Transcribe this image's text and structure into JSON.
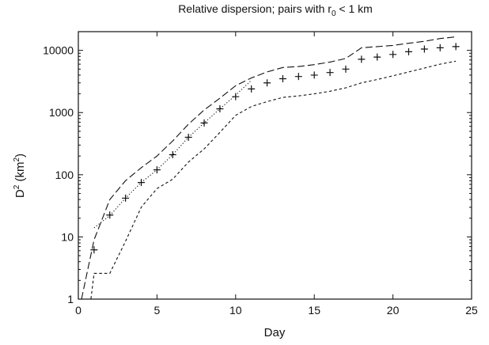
{
  "chart_data": {
    "type": "line",
    "title_main": "Relative dispersion; pairs with r",
    "title_sub": "0",
    "title_tail": " < 1 km",
    "xlabel": "Day",
    "ylabel_main": "D",
    "ylabel_sup1": "2",
    "ylabel_mid": " (km",
    "ylabel_sup2": "2",
    "ylabel_end": ")",
    "xlim": [
      0,
      25
    ],
    "ylim": [
      1,
      20000
    ],
    "y_scale": "log",
    "grid": false,
    "x_ticks": [
      0,
      5,
      10,
      15,
      20,
      25
    ],
    "x_tick_labels": [
      "0",
      "5",
      "10",
      "15",
      "20",
      "25"
    ],
    "y_ticks": [
      1,
      10,
      100,
      1000,
      10000
    ],
    "y_tick_labels": [
      "1",
      "10",
      "100",
      "1000",
      "10000"
    ],
    "series": [
      {
        "style": "markers-plus",
        "x": [
          1,
          2,
          3,
          4,
          5,
          6,
          7,
          8,
          9,
          10,
          11,
          12,
          13,
          14,
          15,
          16,
          17,
          18,
          19,
          20,
          21,
          22,
          23,
          24
        ],
        "y": [
          6.2,
          22.5,
          42,
          75,
          120,
          210,
          400,
          680,
          1150,
          1800,
          2400,
          3000,
          3500,
          3800,
          4000,
          4400,
          5000,
          7200,
          7800,
          8600,
          9500,
          10500,
          11000,
          11500
        ]
      },
      {
        "style": "dotted",
        "x": [
          1,
          2,
          3,
          4,
          5,
          6,
          7,
          8,
          9,
          10,
          11
        ],
        "y": [
          14,
          22,
          42,
          75,
          120,
          210,
          400,
          680,
          1150,
          1900,
          3300
        ]
      },
      {
        "style": "dashed-long",
        "x": [
          0.2,
          1,
          2,
          3,
          4,
          5,
          6,
          7,
          8,
          9,
          10,
          11,
          12,
          13,
          14,
          15,
          16,
          17,
          18,
          19,
          20,
          21,
          22,
          23,
          24
        ],
        "y": [
          1,
          9,
          40,
          80,
          130,
          200,
          350,
          650,
          1100,
          1700,
          2700,
          3600,
          4500,
          5300,
          5500,
          5900,
          6500,
          7400,
          11000,
          11500,
          12000,
          13000,
          14000,
          15500,
          16500
        ]
      },
      {
        "style": "dashed-short",
        "x": [
          0.3,
          0.8,
          1,
          2,
          3,
          4,
          5,
          6,
          7,
          8,
          9,
          10,
          11,
          12,
          13,
          14,
          15,
          16,
          17,
          18,
          19,
          20,
          21,
          22,
          23,
          24
        ],
        "y": [
          0.5,
          1,
          2.6,
          2.6,
          8.5,
          30,
          60,
          85,
          160,
          260,
          480,
          900,
          1250,
          1500,
          1750,
          1850,
          2000,
          2200,
          2500,
          3000,
          3400,
          3900,
          4500,
          5200,
          6000,
          6700
        ]
      }
    ]
  }
}
